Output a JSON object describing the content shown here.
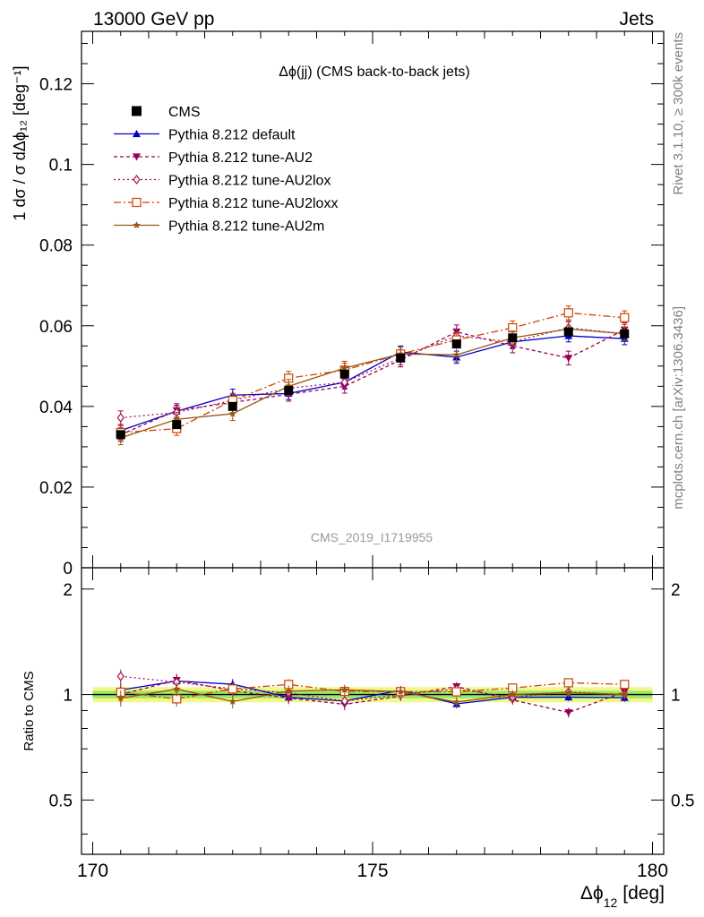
{
  "header": {
    "left": "13000 GeV pp",
    "right": "Jets"
  },
  "side_labels": {
    "rivet": "Rivet 3.1.10, ≥ 300k events",
    "mcplots": "mcplots.cern.ch [arXiv:1306.3436]"
  },
  "chart_data": {
    "type": "line",
    "title": "Δϕ(jj) (CMS back-to-back jets)",
    "watermark": "CMS_2019_I1719955",
    "xlabel": "Δϕ",
    "xlabel_sub": "12",
    "xlabel_unit": "[deg]",
    "ylabel": "1 dσ / σ dΔϕ₁₂ [deg⁻¹]",
    "ratio_ylabel": "Ratio to CMS",
    "xlim": [
      169.8,
      180.2
    ],
    "ylim": [
      0,
      0.133
    ],
    "ratio_ylim": [
      0.35,
      2.3
    ],
    "x_ticks": [
      "170",
      "175",
      "180"
    ],
    "x_tick_values": [
      170,
      175,
      180
    ],
    "y_ticks": [
      "0",
      "0.02",
      "0.04",
      "0.06",
      "0.08",
      "0.1",
      "0.12"
    ],
    "y_tick_values": [
      0,
      0.02,
      0.04,
      0.06,
      0.08,
      0.1,
      0.12
    ],
    "ratio_ticks": [
      "0.5",
      "1",
      "2"
    ],
    "ratio_tick_values": [
      0.5,
      1,
      2
    ],
    "x": [
      170.5,
      171.5,
      172.5,
      173.5,
      174.5,
      175.5,
      176.5,
      177.5,
      178.5,
      179.5
    ],
    "data": {
      "name": "CMS",
      "values": [
        0.033,
        0.0355,
        0.04,
        0.044,
        0.048,
        0.052,
        0.0555,
        0.057,
        0.0585,
        0.058
      ],
      "errors": [
        0.001,
        0.001,
        0.001,
        0.001,
        0.001,
        0.001,
        0.001,
        0.001,
        0.001,
        0.001
      ]
    },
    "band": {
      "inner": 0.025,
      "outer": 0.05
    },
    "series": [
      {
        "name": "Pythia 8.212 default",
        "color": "#0000cc",
        "marker": "triangle-up",
        "dash": "",
        "values": [
          0.034,
          0.0388,
          0.0428,
          0.0432,
          0.046,
          0.0535,
          0.0522,
          0.056,
          0.0575,
          0.0568
        ],
        "errors": [
          0.0015,
          0.0015,
          0.0015,
          0.0015,
          0.0015,
          0.0015,
          0.0015,
          0.0015,
          0.0015,
          0.0015
        ]
      },
      {
        "name": "Pythia 8.212 tune-AU2",
        "color": "#990055",
        "marker": "triangle-down",
        "dash": "4,3",
        "values": [
          0.033,
          0.039,
          0.041,
          0.043,
          0.045,
          0.0515,
          0.0585,
          0.055,
          0.052,
          0.059
        ],
        "errors": [
          0.0017,
          0.0017,
          0.0017,
          0.0017,
          0.0017,
          0.0017,
          0.0017,
          0.0017,
          0.0017,
          0.0017
        ]
      },
      {
        "name": "Pythia 8.212 tune-AU2lox",
        "color": "#aa1155",
        "marker": "diamond-open",
        "dash": "2,3",
        "values": [
          0.0372,
          0.0385,
          0.0415,
          0.0445,
          0.046,
          0.052,
          0.0575,
          0.056,
          0.0595,
          0.058
        ],
        "errors": [
          0.0017,
          0.0017,
          0.0017,
          0.0017,
          0.0017,
          0.0017,
          0.0017,
          0.0017,
          0.0017,
          0.0017
        ]
      },
      {
        "name": "Pythia 8.212 tune-AU2loxx",
        "color": "#cc4400",
        "marker": "square-open",
        "dash": "8,3,2,3",
        "values": [
          0.0335,
          0.0345,
          0.0415,
          0.047,
          0.049,
          0.053,
          0.0565,
          0.0595,
          0.0632,
          0.062
        ],
        "errors": [
          0.0017,
          0.0017,
          0.0017,
          0.0017,
          0.0017,
          0.0017,
          0.0017,
          0.0017,
          0.0017,
          0.0017
        ]
      },
      {
        "name": "Pythia 8.212 tune-AU2m",
        "color": "#995511",
        "marker": "star",
        "dash": "",
        "values": [
          0.0322,
          0.0368,
          0.0382,
          0.045,
          0.0495,
          0.053,
          0.0528,
          0.057,
          0.0592,
          0.058
        ],
        "errors": [
          0.0017,
          0.0017,
          0.0017,
          0.0017,
          0.0017,
          0.0017,
          0.0017,
          0.0017,
          0.0017,
          0.0017
        ]
      }
    ]
  }
}
